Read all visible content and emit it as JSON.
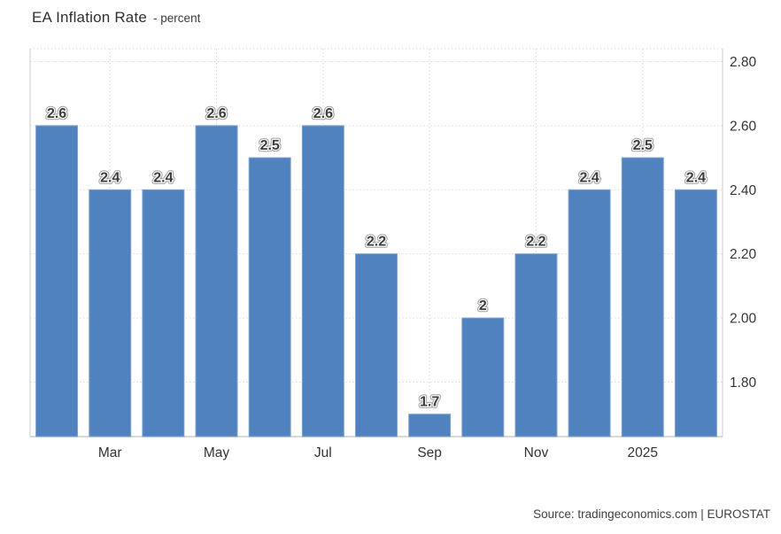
{
  "title": {
    "main": "EA Inflation Rate",
    "subtitle": "- percent"
  },
  "source": {
    "text": "Source: tradingeconomics.com | EUROSTAT"
  },
  "chart_data": {
    "type": "bar",
    "title": "EA Inflation Rate",
    "ylabel": "percent",
    "values": [
      2.6,
      2.4,
      2.4,
      2.6,
      2.5,
      2.6,
      2.2,
      1.7,
      2,
      2.2,
      2.4,
      2.5,
      2.4
    ],
    "value_labels": [
      "2.6",
      "2.4",
      "2.4",
      "2.6",
      "2.5",
      "2.6",
      "2.2",
      "1.7",
      "2",
      "2.2",
      "2.4",
      "2.5",
      "2.4"
    ],
    "xticks": [
      {
        "index": 1,
        "label": "Mar"
      },
      {
        "index": 3,
        "label": "May"
      },
      {
        "index": 5,
        "label": "Jul"
      },
      {
        "index": 7,
        "label": "Sep"
      },
      {
        "index": 9,
        "label": "Nov"
      },
      {
        "index": 11,
        "label": "2025"
      }
    ],
    "yticks": [
      {
        "value": 2.8,
        "label": "2.80"
      },
      {
        "value": 2.6,
        "label": "2.60"
      },
      {
        "value": 2.4,
        "label": "2.40"
      },
      {
        "value": 2.2,
        "label": "2.20"
      },
      {
        "value": 2.0,
        "label": "2.00"
      },
      {
        "value": 1.8,
        "label": "1.80"
      }
    ],
    "ylim": [
      1.63,
      2.84
    ],
    "grid": "dotted",
    "legend_position": "none",
    "colors": {
      "bar": "#4f82be",
      "bar_edge": "#7ea6d2",
      "label_text": "#3d3d3d",
      "label_outline_outer": "#9d9d9d",
      "label_outline_inner": "#ffffff",
      "axis_text": "#333333",
      "grid_line": "#d9d9d9",
      "axis_line": "#cccccc",
      "background": "#ffffff"
    }
  }
}
